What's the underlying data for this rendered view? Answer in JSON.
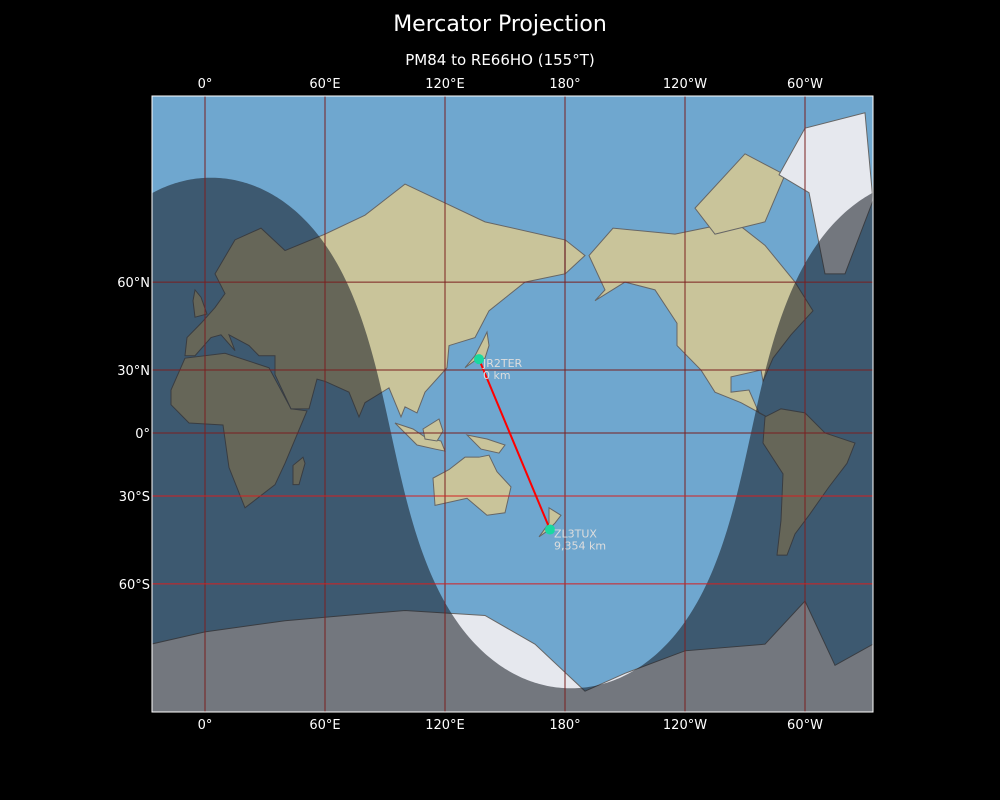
{
  "title": "Mercator Projection",
  "subtitle": "PM84 to RE66HO (155°T)",
  "map": {
    "projection": "Mercator",
    "lon_ticks": [
      {
        "lon": 0,
        "label": "0°"
      },
      {
        "lon": 60,
        "label": "60°E"
      },
      {
        "lon": 120,
        "label": "120°E"
      },
      {
        "lon": 180,
        "label": "180°"
      },
      {
        "lon": 240,
        "label": "120°W"
      },
      {
        "lon": 300,
        "label": "60°W"
      }
    ],
    "lat_ticks": [
      {
        "lat": 60,
        "label": "60°N"
      },
      {
        "lat": 30,
        "label": "30°N"
      },
      {
        "lat": 0,
        "label": "0°"
      },
      {
        "lat": -30,
        "label": "30°S"
      },
      {
        "lat": -60,
        "label": "60°S"
      }
    ],
    "highlight_lats": [
      -30,
      -60
    ],
    "night_shading": true,
    "colors": {
      "ocean": "#6fa7cf",
      "land": "#c9c49a",
      "ice": "#e6e8ee",
      "grid": "#7a1f1f",
      "highlight": "#d42020",
      "path": "#ff0000",
      "marker": "#19d9a0"
    },
    "stations": [
      {
        "call": "JR2TER",
        "distance": "0 km",
        "lon": 137,
        "lat": 34.6
      },
      {
        "call": "ZL3TUX",
        "distance": "9,354 km",
        "lon": 172.5,
        "lat": -43.4
      }
    ]
  }
}
